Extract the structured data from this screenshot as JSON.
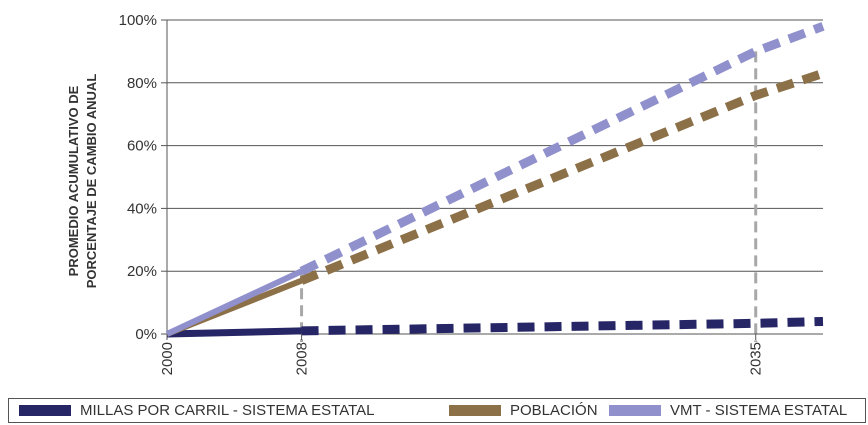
{
  "chart_data": {
    "type": "line",
    "ylabel_lines": [
      "PROMEDIO ACUMULATIVO DE",
      "PORCENTAJE DE CAMBIO ANUAL"
    ],
    "xlabel": "",
    "x_tick_labels": [
      "2000",
      "2008",
      "2035"
    ],
    "y_tick_labels": [
      "0%",
      "20%",
      "40%",
      "60%",
      "80%",
      "100%"
    ],
    "xlim": [
      2000,
      2039
    ],
    "ylim": [
      0,
      100
    ],
    "grid": "horizontal",
    "reference_years": [
      2008,
      2035
    ],
    "solid_until": 2008,
    "legend_position": "bottom",
    "series": [
      {
        "name": "MILLAS POR CARRIL - SISTEMA ESTATAL",
        "color": "#262666",
        "x": [
          2000,
          2008,
          2035,
          2039
        ],
        "y": [
          0,
          1,
          3.4,
          4
        ]
      },
      {
        "name": "POBLACIÓN",
        "color": "#8C7048",
        "x": [
          2000,
          2008,
          2035,
          2039
        ],
        "y": [
          0,
          17,
          76,
          83
        ]
      },
      {
        "name": "VMT - SISTEMA ESTATAL",
        "color": "#9090CC",
        "x": [
          2000,
          2008,
          2035,
          2039
        ],
        "y": [
          0,
          20,
          90,
          98
        ]
      }
    ]
  }
}
